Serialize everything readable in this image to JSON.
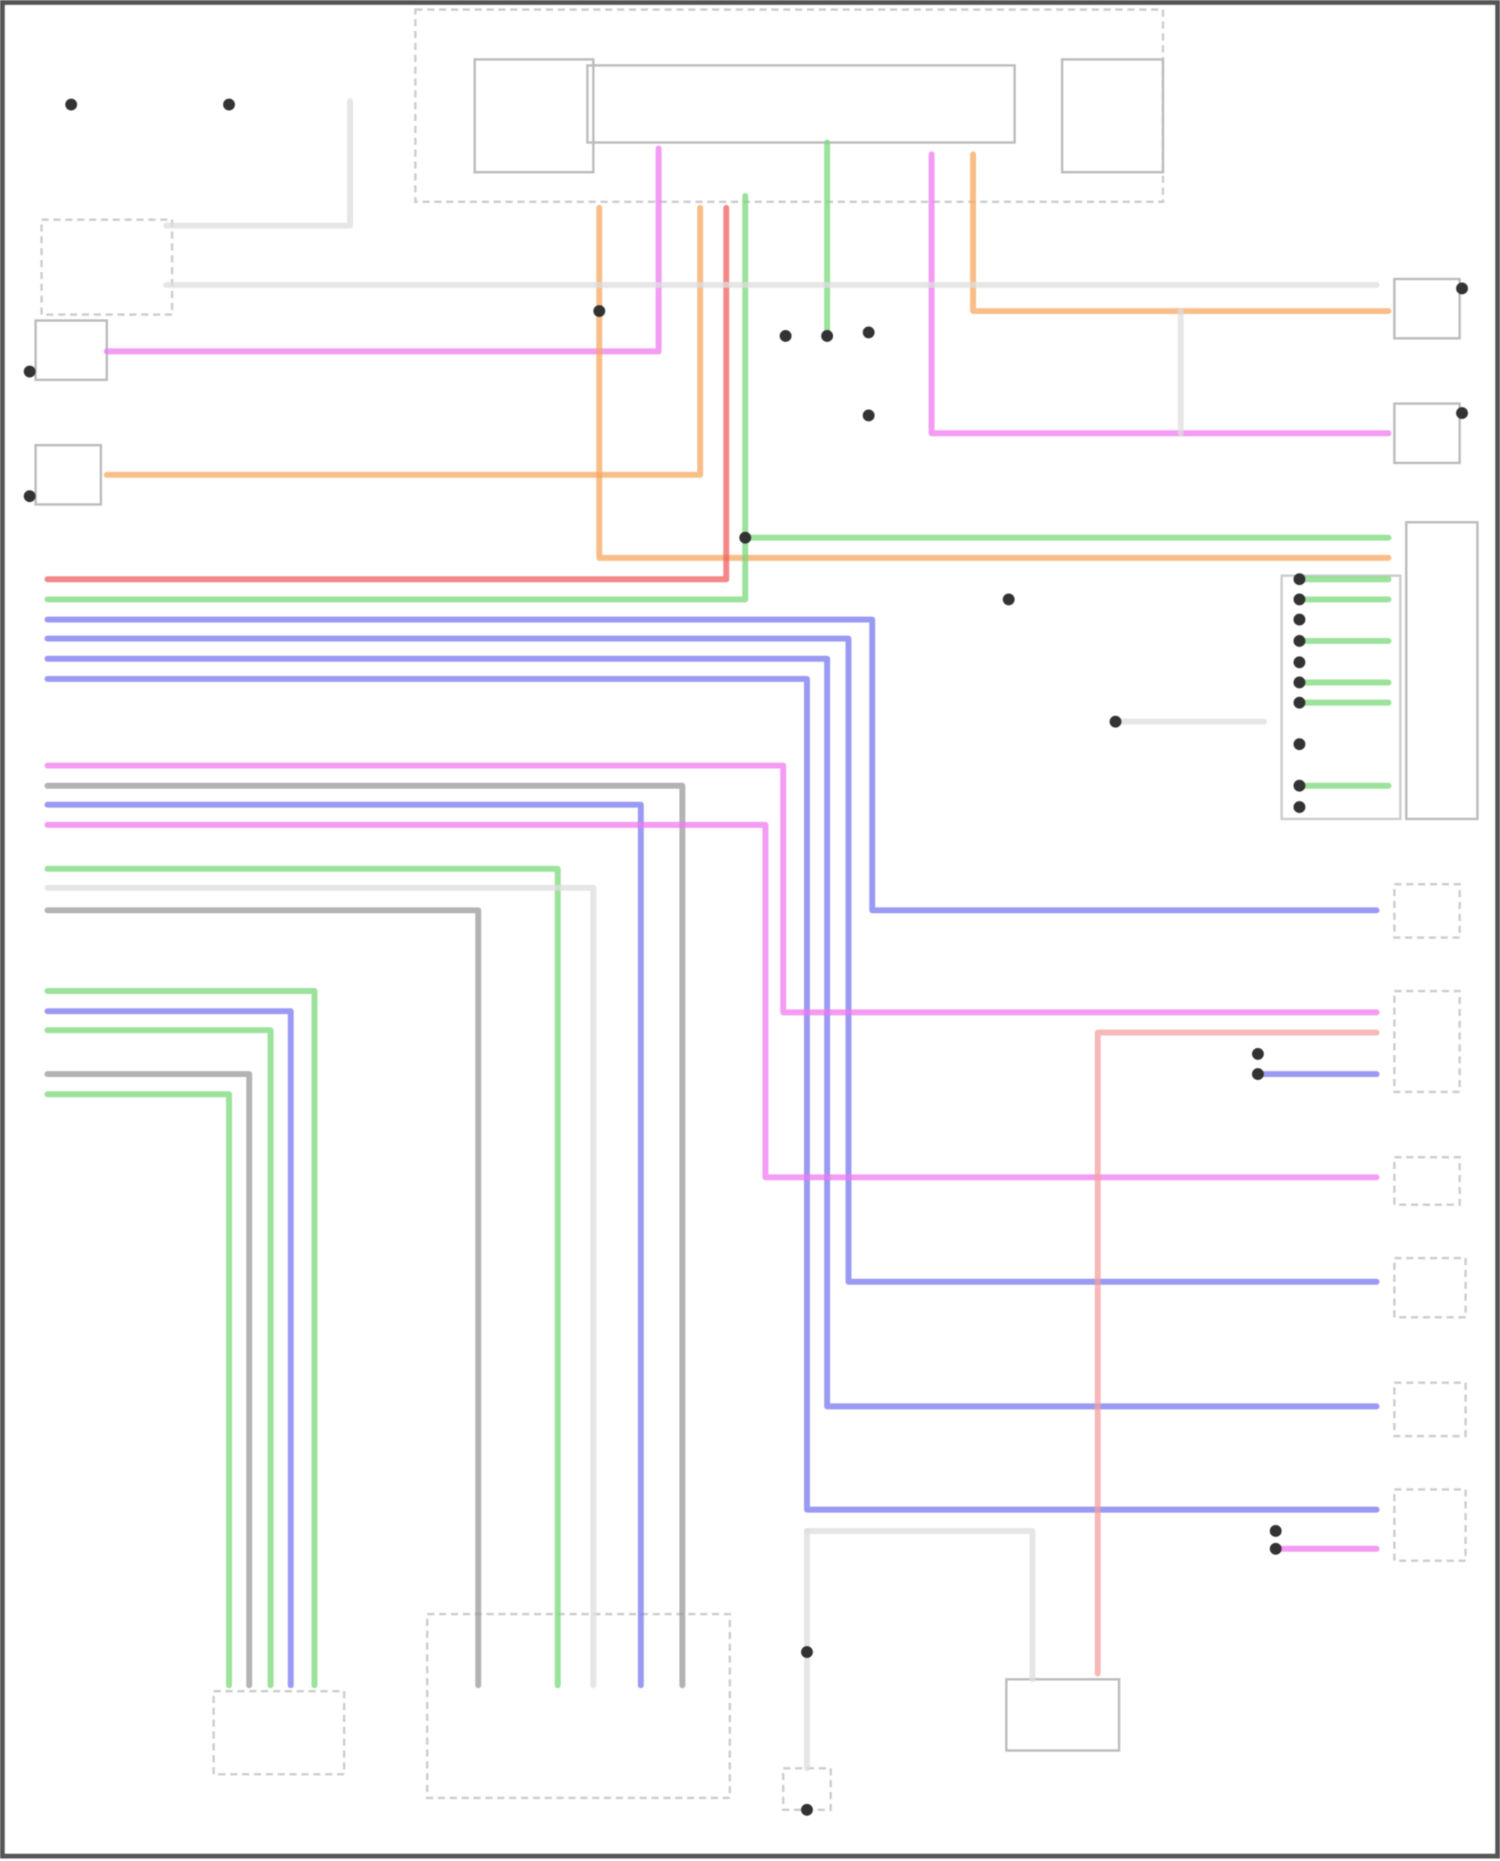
{
  "diagram": {
    "wire_colors": {
      "pink": "#f07af0",
      "orange": "#f7a860",
      "red": "#f06060",
      "green": "#7ad87a",
      "blue": "#7878f0",
      "gray": "#9a9a9a",
      "light_gray": "#dddddd",
      "light_red": "#f4a0a0"
    },
    "border_color": "#555555"
  }
}
